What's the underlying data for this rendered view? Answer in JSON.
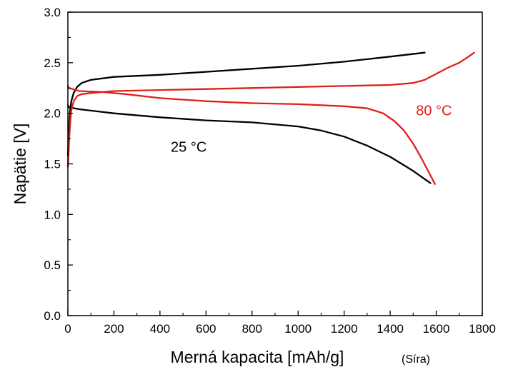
{
  "chart_data": {
    "type": "line",
    "xlabel": "Merná kapacita  [mAh/g]",
    "xlabel_note": "(Síra)",
    "ylabel": "Napätie  [V]",
    "xlim": [
      0,
      1800
    ],
    "ylim": [
      0,
      3.0
    ],
    "x_ticks": [
      0,
      200,
      400,
      600,
      800,
      1000,
      1200,
      1400,
      1600,
      1800
    ],
    "x_tick_labels": [
      "0",
      "200",
      "400",
      "600",
      "800",
      "1000",
      "1200",
      "1400",
      "1600",
      "1800"
    ],
    "y_ticks": [
      0,
      0.5,
      1.0,
      1.5,
      2.0,
      2.5,
      3.0
    ],
    "y_tick_labels": [
      "0.0",
      "0.5",
      "1.0",
      "1.5",
      "2.0",
      "2.5",
      "3.0"
    ],
    "grid": false,
    "annotations": [
      {
        "text": "25 °C",
        "x": 525,
        "y": 1.62,
        "color": "#000000"
      },
      {
        "text": "80 °C",
        "x": 1590,
        "y": 1.98,
        "color": "#e0201a"
      }
    ],
    "series": [
      {
        "color": "#000000",
        "points": [
          [
            0,
            1.58
          ],
          [
            5,
            1.85
          ],
          [
            10,
            2.03
          ],
          [
            15,
            2.12
          ],
          [
            25,
            2.2
          ],
          [
            40,
            2.26
          ],
          [
            60,
            2.3
          ],
          [
            100,
            2.33
          ],
          [
            200,
            2.36
          ],
          [
            400,
            2.38
          ],
          [
            600,
            2.41
          ],
          [
            800,
            2.44
          ],
          [
            1000,
            2.47
          ],
          [
            1200,
            2.51
          ],
          [
            1400,
            2.56
          ],
          [
            1550,
            2.6
          ]
        ]
      },
      {
        "color": "#000000",
        "points": [
          [
            0,
            2.08
          ],
          [
            5,
            2.06
          ],
          [
            50,
            2.04
          ],
          [
            200,
            2.0
          ],
          [
            400,
            1.96
          ],
          [
            600,
            1.93
          ],
          [
            800,
            1.91
          ],
          [
            1000,
            1.87
          ],
          [
            1100,
            1.83
          ],
          [
            1200,
            1.77
          ],
          [
            1300,
            1.68
          ],
          [
            1400,
            1.57
          ],
          [
            1450,
            1.5
          ],
          [
            1500,
            1.43
          ],
          [
            1550,
            1.35
          ],
          [
            1575,
            1.31
          ]
        ]
      },
      {
        "color": "#e0201a",
        "points": [
          [
            0,
            1.47
          ],
          [
            3,
            1.6
          ],
          [
            6,
            1.75
          ],
          [
            10,
            1.9
          ],
          [
            15,
            2.03
          ],
          [
            25,
            2.12
          ],
          [
            40,
            2.17
          ],
          [
            60,
            2.19
          ],
          [
            100,
            2.2
          ],
          [
            200,
            2.22
          ],
          [
            400,
            2.23
          ],
          [
            600,
            2.24
          ],
          [
            800,
            2.25
          ],
          [
            1000,
            2.26
          ],
          [
            1200,
            2.27
          ],
          [
            1400,
            2.28
          ],
          [
            1500,
            2.3
          ],
          [
            1550,
            2.33
          ],
          [
            1600,
            2.39
          ],
          [
            1650,
            2.45
          ],
          [
            1700,
            2.5
          ],
          [
            1740,
            2.56
          ],
          [
            1765,
            2.6
          ]
        ]
      },
      {
        "color": "#e0201a",
        "points": [
          [
            0,
            2.27
          ],
          [
            5,
            2.25
          ],
          [
            50,
            2.22
          ],
          [
            150,
            2.21
          ],
          [
            250,
            2.19
          ],
          [
            400,
            2.15
          ],
          [
            600,
            2.12
          ],
          [
            800,
            2.1
          ],
          [
            1000,
            2.09
          ],
          [
            1200,
            2.07
          ],
          [
            1300,
            2.05
          ],
          [
            1370,
            2.0
          ],
          [
            1420,
            1.92
          ],
          [
            1460,
            1.83
          ],
          [
            1500,
            1.7
          ],
          [
            1530,
            1.58
          ],
          [
            1560,
            1.45
          ],
          [
            1590,
            1.32
          ],
          [
            1595,
            1.3
          ]
        ]
      }
    ]
  }
}
